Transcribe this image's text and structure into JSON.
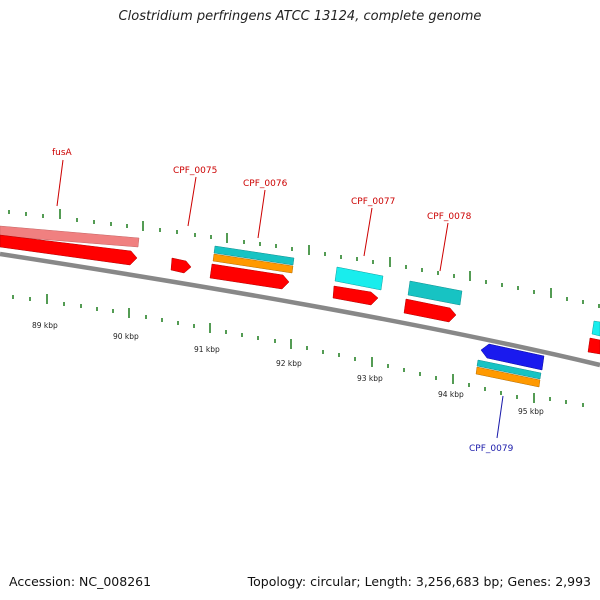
{
  "title": "Clostridium perfringens ATCC 13124, complete genome",
  "footer": {
    "accession": "Accession: NC_008261",
    "summary": "Topology: circular; Length: 3,256,683 bp; Genes: 2,993"
  },
  "colors": {
    "backbone": "#8a8a8a",
    "cds": "#ff0000",
    "gene_pale": "#f08080",
    "cog_cyan": "#19dddd",
    "cog_teal": "#17c3c3",
    "cog_orange": "#ff9900",
    "cds_reverse": "#1a1aee",
    "tick": "#1a7a1a",
    "label_forward": "#cc0000",
    "label_reverse": "#1a1aaa"
  },
  "gene_labels": {
    "fusA": "fusA",
    "cpf_0075": "CPF_0075",
    "cpf_0076": "CPF_0076",
    "cpf_0077": "CPF_0077",
    "cpf_0078": "CPF_0078",
    "cpf_0079": "CPF_0079"
  },
  "tick_labels": [
    "89 kbp",
    "90 kbp",
    "91 kbp",
    "92 kbp",
    "93 kbp",
    "94 kbp",
    "95 kbp"
  ]
}
